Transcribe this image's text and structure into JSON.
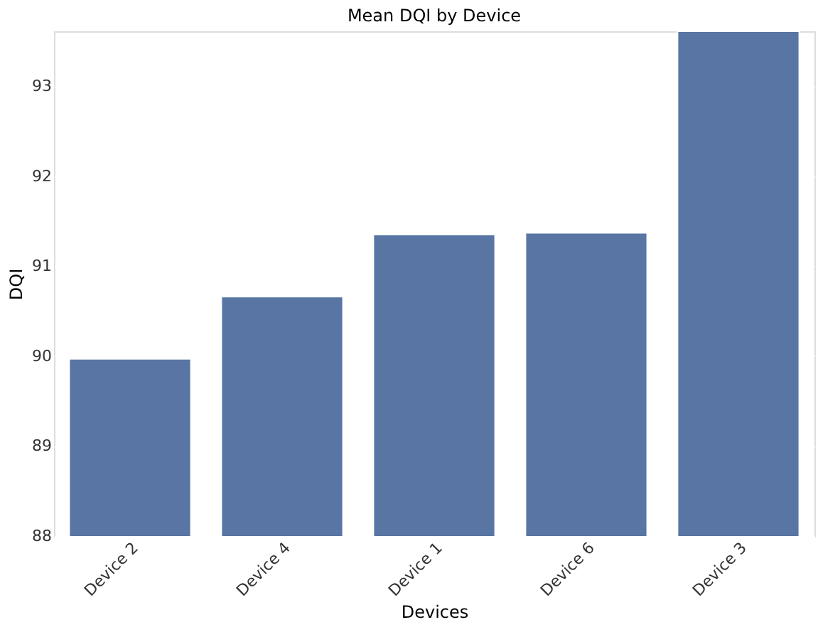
{
  "chart_data": {
    "type": "bar",
    "title": "Mean DQI by Device",
    "xlabel": "Devices",
    "ylabel": "DQI",
    "categories": [
      "Device 2",
      "Device 4",
      "Device 1",
      "Device 6",
      "Device 3"
    ],
    "values": [
      89.97,
      90.66,
      91.35,
      91.37,
      93.61
    ],
    "color": "#5875a4",
    "ylim": [
      88,
      93.61
    ],
    "yticks": [
      88,
      89,
      90,
      91,
      92,
      93
    ],
    "grid": "y"
  }
}
